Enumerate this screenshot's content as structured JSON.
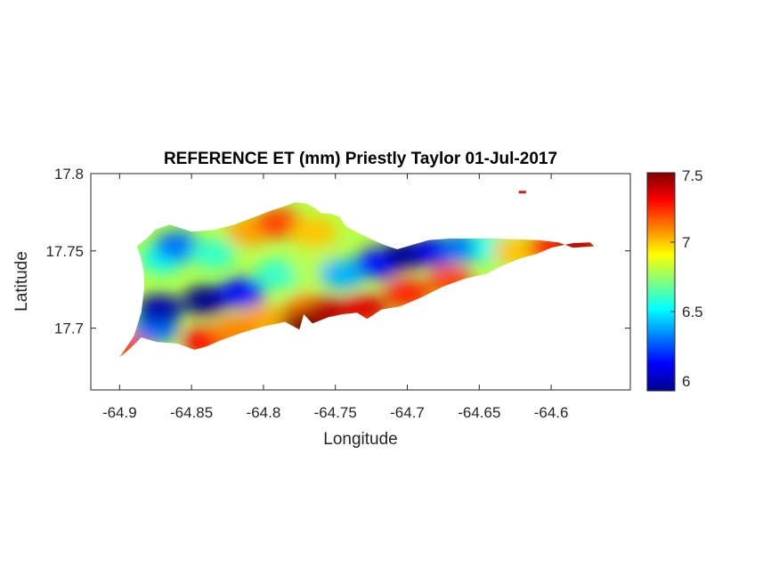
{
  "chart_data": {
    "type": "heatmap",
    "title": "REFERENCE ET (mm) Priestly Taylor 01-Jul-2017",
    "xlabel": "Longitude",
    "ylabel": "Latitude",
    "xlim": [
      -64.92,
      -64.545
    ],
    "ylim": [
      17.66,
      17.8
    ],
    "xticks": [
      -64.9,
      -64.85,
      -64.8,
      -64.75,
      -64.7,
      -64.65,
      -64.6
    ],
    "xtick_labels": [
      "-64.9",
      "-64.85",
      "-64.8",
      "-64.75",
      "-64.7",
      "-64.65",
      "-64.6"
    ],
    "yticks": [
      17.7,
      17.75,
      17.8
    ],
    "ytick_labels": [
      "17.7",
      "17.75",
      "17.8"
    ],
    "colorbar": {
      "colormap": "jet",
      "range": [
        5.93,
        7.5
      ],
      "ticks": [
        6,
        6.5,
        7,
        7.5
      ],
      "tick_labels": [
        "6",
        "6.5",
        "7",
        "7.5"
      ]
    },
    "grid": false,
    "island_outline": [
      [
        -64.9,
        17.681
      ],
      [
        -64.895,
        17.685
      ],
      [
        -64.888,
        17.691
      ],
      [
        -64.885,
        17.694
      ],
      [
        -64.874,
        17.691
      ],
      [
        -64.86,
        17.69
      ],
      [
        -64.848,
        17.686
      ],
      [
        -64.84,
        17.688
      ],
      [
        -64.83,
        17.692
      ],
      [
        -64.815,
        17.697
      ],
      [
        -64.8,
        17.701
      ],
      [
        -64.785,
        17.704
      ],
      [
        -64.775,
        17.699
      ],
      [
        -64.772,
        17.709
      ],
      [
        -64.766,
        17.703
      ],
      [
        -64.755,
        17.707
      ],
      [
        -64.745,
        17.709
      ],
      [
        -64.735,
        17.71
      ],
      [
        -64.728,
        17.706
      ],
      [
        -64.718,
        17.712
      ],
      [
        -64.705,
        17.714
      ],
      [
        -64.69,
        17.72
      ],
      [
        -64.675,
        17.727
      ],
      [
        -64.66,
        17.732
      ],
      [
        -64.645,
        17.735
      ],
      [
        -64.635,
        17.74
      ],
      [
        -64.622,
        17.745
      ],
      [
        -64.61,
        17.748
      ],
      [
        -64.6,
        17.752
      ],
      [
        -64.585,
        17.755
      ],
      [
        -64.573,
        17.7555
      ],
      [
        -64.57,
        17.753
      ],
      [
        -64.585,
        17.752
      ],
      [
        -64.595,
        17.7555
      ],
      [
        -64.61,
        17.757
      ],
      [
        -64.625,
        17.7575
      ],
      [
        -64.64,
        17.758
      ],
      [
        -64.655,
        17.758
      ],
      [
        -64.67,
        17.758
      ],
      [
        -64.685,
        17.757
      ],
      [
        -64.698,
        17.7535
      ],
      [
        -64.707,
        17.751
      ],
      [
        -64.715,
        17.7535
      ],
      [
        -64.725,
        17.7575
      ],
      [
        -64.735,
        17.762
      ],
      [
        -64.743,
        17.766
      ],
      [
        -64.747,
        17.772
      ],
      [
        -64.753,
        17.774
      ],
      [
        -64.76,
        17.7745
      ],
      [
        -64.764,
        17.7775
      ],
      [
        -64.77,
        17.7805
      ],
      [
        -64.778,
        17.7815
      ],
      [
        -64.785,
        17.779
      ],
      [
        -64.795,
        17.776
      ],
      [
        -64.806,
        17.772
      ],
      [
        -64.82,
        17.767
      ],
      [
        -64.835,
        17.7635
      ],
      [
        -64.85,
        17.7625
      ],
      [
        -64.865,
        17.767
      ],
      [
        -64.875,
        17.764
      ],
      [
        -64.88,
        17.759
      ],
      [
        -64.888,
        17.753
      ],
      [
        -64.885,
        17.745
      ],
      [
        -64.883,
        17.735
      ],
      [
        -64.883,
        17.725
      ],
      [
        -64.885,
        17.71
      ],
      [
        -64.89,
        17.695
      ],
      [
        -64.9,
        17.681
      ]
    ],
    "islet": [
      -64.62,
      17.788
    ],
    "value_field": [
      {
        "lon": -64.895,
        "lat": 17.686,
        "value": 7.2
      },
      {
        "lon": -64.875,
        "lat": 17.7,
        "value": 6.3
      },
      {
        "lon": -64.872,
        "lat": 17.712,
        "value": 6.0
      },
      {
        "lon": -64.84,
        "lat": 17.718,
        "value": 5.95
      },
      {
        "lon": -64.815,
        "lat": 17.723,
        "value": 6.15
      },
      {
        "lon": -64.87,
        "lat": 17.745,
        "value": 6.55
      },
      {
        "lon": -64.86,
        "lat": 17.753,
        "value": 6.3
      },
      {
        "lon": -64.835,
        "lat": 17.748,
        "value": 6.6
      },
      {
        "lon": -64.81,
        "lat": 17.763,
        "value": 7.05
      },
      {
        "lon": -64.79,
        "lat": 17.768,
        "value": 7.2
      },
      {
        "lon": -64.765,
        "lat": 17.762,
        "value": 7.0
      },
      {
        "lon": -64.79,
        "lat": 17.735,
        "value": 6.6
      },
      {
        "lon": -64.765,
        "lat": 17.74,
        "value": 6.8
      },
      {
        "lon": -64.745,
        "lat": 17.735,
        "value": 6.4
      },
      {
        "lon": -64.72,
        "lat": 17.742,
        "value": 6.15
      },
      {
        "lon": -64.7,
        "lat": 17.748,
        "value": 5.95
      },
      {
        "lon": -64.68,
        "lat": 17.75,
        "value": 6.1
      },
      {
        "lon": -64.66,
        "lat": 17.752,
        "value": 6.3
      },
      {
        "lon": -64.64,
        "lat": 17.752,
        "value": 6.55
      },
      {
        "lon": -64.625,
        "lat": 17.75,
        "value": 7.0
      },
      {
        "lon": -64.6,
        "lat": 17.752,
        "value": 7.25
      },
      {
        "lon": -64.58,
        "lat": 17.754,
        "value": 7.4
      },
      {
        "lon": -64.8,
        "lat": 17.705,
        "value": 7.05
      },
      {
        "lon": -64.77,
        "lat": 17.712,
        "value": 7.1
      },
      {
        "lon": -64.755,
        "lat": 17.71,
        "value": 7.4
      },
      {
        "lon": -64.73,
        "lat": 17.712,
        "value": 7.35
      },
      {
        "lon": -64.7,
        "lat": 17.722,
        "value": 7.25
      },
      {
        "lon": -64.67,
        "lat": 17.73,
        "value": 7.2
      },
      {
        "lon": -64.84,
        "lat": 17.691,
        "value": 7.3
      },
      {
        "lon": -64.82,
        "lat": 17.698,
        "value": 7.1
      },
      {
        "lon": -64.772,
        "lat": 17.702,
        "value": 7.5
      }
    ]
  }
}
